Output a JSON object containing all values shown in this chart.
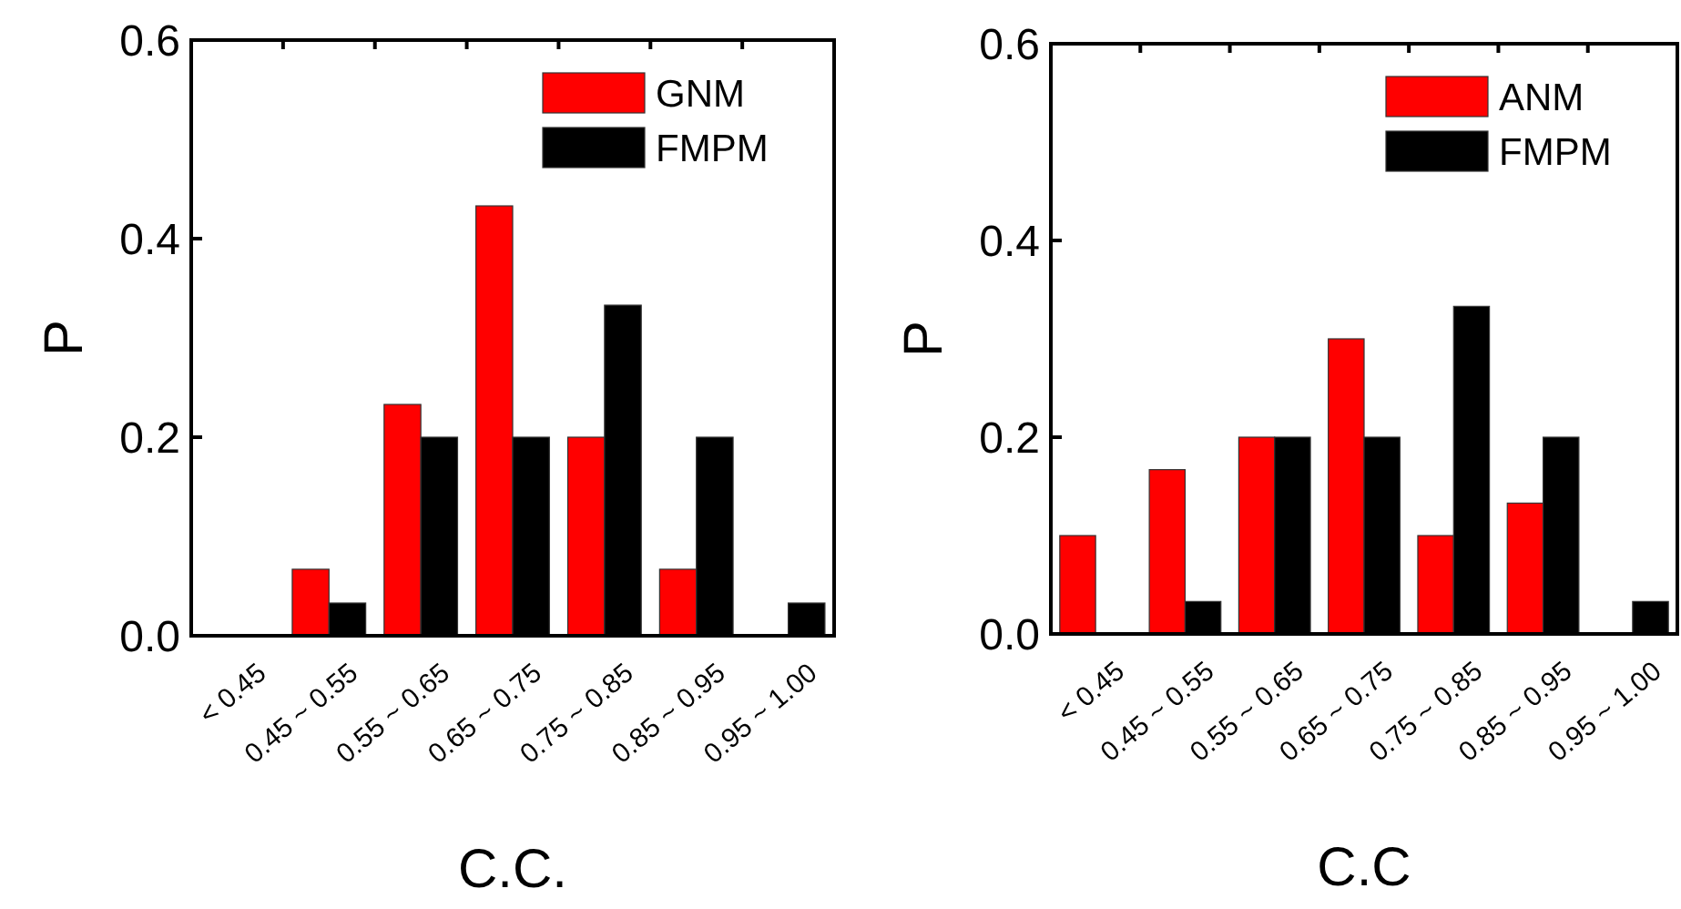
{
  "chart_data": [
    {
      "type": "bar",
      "xlabel": "C.C.",
      "ylabel": "P",
      "categories": [
        "< 0.45",
        "0.45 ~ 0.55",
        "0.55 ~ 0.65",
        "0.65 ~ 0.75",
        "0.75 ~ 0.85",
        "0.85 ~ 0.95",
        "0.95 ~ 1.00"
      ],
      "series": [
        {
          "name": "GNM",
          "color": "#ff0000",
          "values": [
            0,
            0.067,
            0.233,
            0.433,
            0.2,
            0.067,
            0
          ]
        },
        {
          "name": "FMPM",
          "color": "#000000",
          "values": [
            0,
            0.033,
            0.2,
            0.2,
            0.333,
            0.2,
            0.033
          ]
        }
      ],
      "ylim": [
        0,
        0.6
      ],
      "yticks": [
        {
          "value": 0,
          "label": "0.0"
        },
        0.2,
        0.4,
        0.6
      ],
      "legend": "top right",
      "grid": false
    },
    {
      "type": "bar",
      "xlabel": "C.C",
      "ylabel": "P",
      "categories": [
        "< 0.45",
        "0.45 ~ 0.55",
        "0.55 ~ 0.65",
        "0.65 ~ 0.75",
        "0.75 ~ 0.85",
        "0.85 ~ 0.95",
        "0.95 ~ 1.00"
      ],
      "series": [
        {
          "name": "ANM",
          "color": "#ff0000",
          "values": [
            0.1,
            0.167,
            0.2,
            0.3,
            0.1,
            0.133,
            0
          ]
        },
        {
          "name": "FMPM",
          "color": "#000000",
          "values": [
            0,
            0.033,
            0.2,
            0.2,
            0.333,
            0.2,
            0.033
          ]
        }
      ],
      "ylim": [
        0,
        0.6
      ],
      "yticks": [
        {
          "value": 0,
          "label": "0.0"
        },
        0.2,
        0.4,
        0.6
      ],
      "legend": "top right",
      "grid": false
    }
  ]
}
